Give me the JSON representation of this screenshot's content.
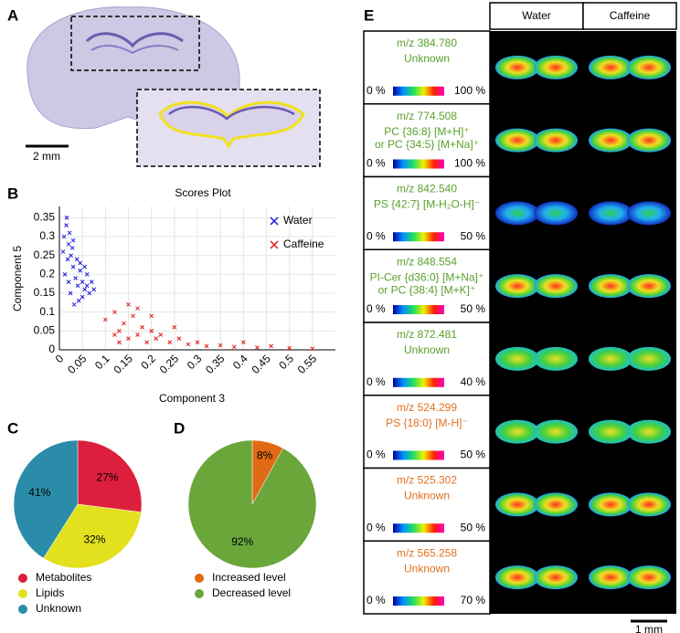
{
  "panels": [
    "A",
    "B",
    "C",
    "D",
    "E"
  ],
  "panel_a": {
    "scale_bar": "2 mm"
  },
  "chart_data": [
    {
      "type": "scatter",
      "title": "Scores Plot",
      "x_label": "Component 3",
      "y_label": "Component 5",
      "xlim": [
        0,
        0.6
      ],
      "ylim": [
        0,
        0.38
      ],
      "xticks": [
        0,
        0.05,
        0.1,
        0.15,
        0.2,
        0.25,
        0.3,
        0.35,
        0.4,
        0.45,
        0.5,
        0.55
      ],
      "yticks": [
        0,
        0.05,
        0.1,
        0.15,
        0.2,
        0.25,
        0.3,
        0.35
      ],
      "grid": true,
      "legend": "upper right",
      "series": [
        {
          "name": "Water",
          "color": "#1a1adc",
          "x": [
            0.01,
            0.015,
            0.02,
            0.025,
            0.03,
            0.012,
            0.018,
            0.022,
            0.028,
            0.035,
            0.04,
            0.045,
            0.05,
            0.055,
            0.06,
            0.065,
            0.07,
            0.045,
            0.05,
            0.055,
            0.06,
            0.008,
            0.016,
            0.024,
            0.032,
            0.038,
            0.042,
            0.075,
            0.03,
            0.02
          ],
          "values": [
            0.3,
            0.33,
            0.28,
            0.25,
            0.22,
            0.2,
            0.24,
            0.31,
            0.27,
            0.19,
            0.17,
            0.21,
            0.18,
            0.16,
            0.2,
            0.15,
            0.18,
            0.23,
            0.14,
            0.22,
            0.17,
            0.26,
            0.35,
            0.15,
            0.12,
            0.24,
            0.13,
            0.16,
            0.29,
            0.18
          ]
        },
        {
          "name": "Caffeine",
          "color": "#e01818",
          "x": [
            0.1,
            0.12,
            0.13,
            0.14,
            0.15,
            0.16,
            0.17,
            0.18,
            0.19,
            0.2,
            0.21,
            0.22,
            0.24,
            0.26,
            0.28,
            0.3,
            0.32,
            0.35,
            0.38,
            0.4,
            0.43,
            0.46,
            0.5,
            0.15,
            0.17,
            0.2,
            0.13,
            0.25,
            0.12,
            0.55
          ],
          "values": [
            0.08,
            0.1,
            0.05,
            0.07,
            0.03,
            0.09,
            0.04,
            0.06,
            0.02,
            0.05,
            0.03,
            0.04,
            0.02,
            0.03,
            0.015,
            0.02,
            0.01,
            0.012,
            0.008,
            0.02,
            0.006,
            0.01,
            0.005,
            0.12,
            0.11,
            0.09,
            0.02,
            0.06,
            0.04,
            0.003
          ]
        }
      ]
    },
    {
      "type": "pie",
      "categories": [
        "Metabolites",
        "Lipids",
        "Unknown"
      ],
      "values": [
        27,
        32,
        41
      ],
      "value_labels": [
        "27%",
        "32%",
        "41%"
      ],
      "colors": [
        "#dc1f3c",
        "#e3e01e",
        "#2a8ca9"
      ]
    },
    {
      "type": "pie",
      "categories": [
        "Increased level",
        "Decreased level"
      ],
      "values": [
        8,
        92
      ],
      "value_labels": [
        "8%",
        "92%"
      ],
      "colors": [
        "#e06a14",
        "#6aa63a"
      ]
    }
  ],
  "panel_e": {
    "columns": [
      "Water",
      "Caffeine"
    ],
    "scale_bar": "1 mm",
    "rows": [
      {
        "mz": "m/z 384.780",
        "annotation": [
          "Unknown"
        ],
        "scale_min": "0 %",
        "scale_max": "100 %",
        "color": "#5aa02c"
      },
      {
        "mz": "m/z 774.508",
        "annotation": [
          "PC {36:8} [M+H]⁺",
          "or PC {34:5} [M+Na]⁺"
        ],
        "scale_min": "0 %",
        "scale_max": "100 %",
        "color": "#5aa02c"
      },
      {
        "mz": "m/z 842.540",
        "annotation": [
          "PS {42:7} [M-H₂O-H]⁻"
        ],
        "scale_min": "0 %",
        "scale_max": "50 %",
        "color": "#5aa02c"
      },
      {
        "mz": "m/z 848.554",
        "annotation": [
          "PI-Cer {d36:0} [M+Na]⁺",
          "or PC {38:4} [M+K]⁺"
        ],
        "scale_min": "0 %",
        "scale_max": "50 %",
        "color": "#5aa02c"
      },
      {
        "mz": "m/z 872.481",
        "annotation": [
          "Unknown"
        ],
        "scale_min": "0 %",
        "scale_max": "40 %",
        "color": "#5aa02c"
      },
      {
        "mz": "m/z 524.299",
        "annotation": [
          "PS {18:0} [M-H]⁻"
        ],
        "scale_min": "0 %",
        "scale_max": "50 %",
        "color": "#e07020"
      },
      {
        "mz": "m/z 525.302",
        "annotation": [
          "Unknown"
        ],
        "scale_min": "0 %",
        "scale_max": "50 %",
        "color": "#e07020"
      },
      {
        "mz": "m/z 565.258",
        "annotation": [
          "Unknown"
        ],
        "scale_min": "0 %",
        "scale_max": "70 %",
        "color": "#e07020"
      }
    ]
  }
}
